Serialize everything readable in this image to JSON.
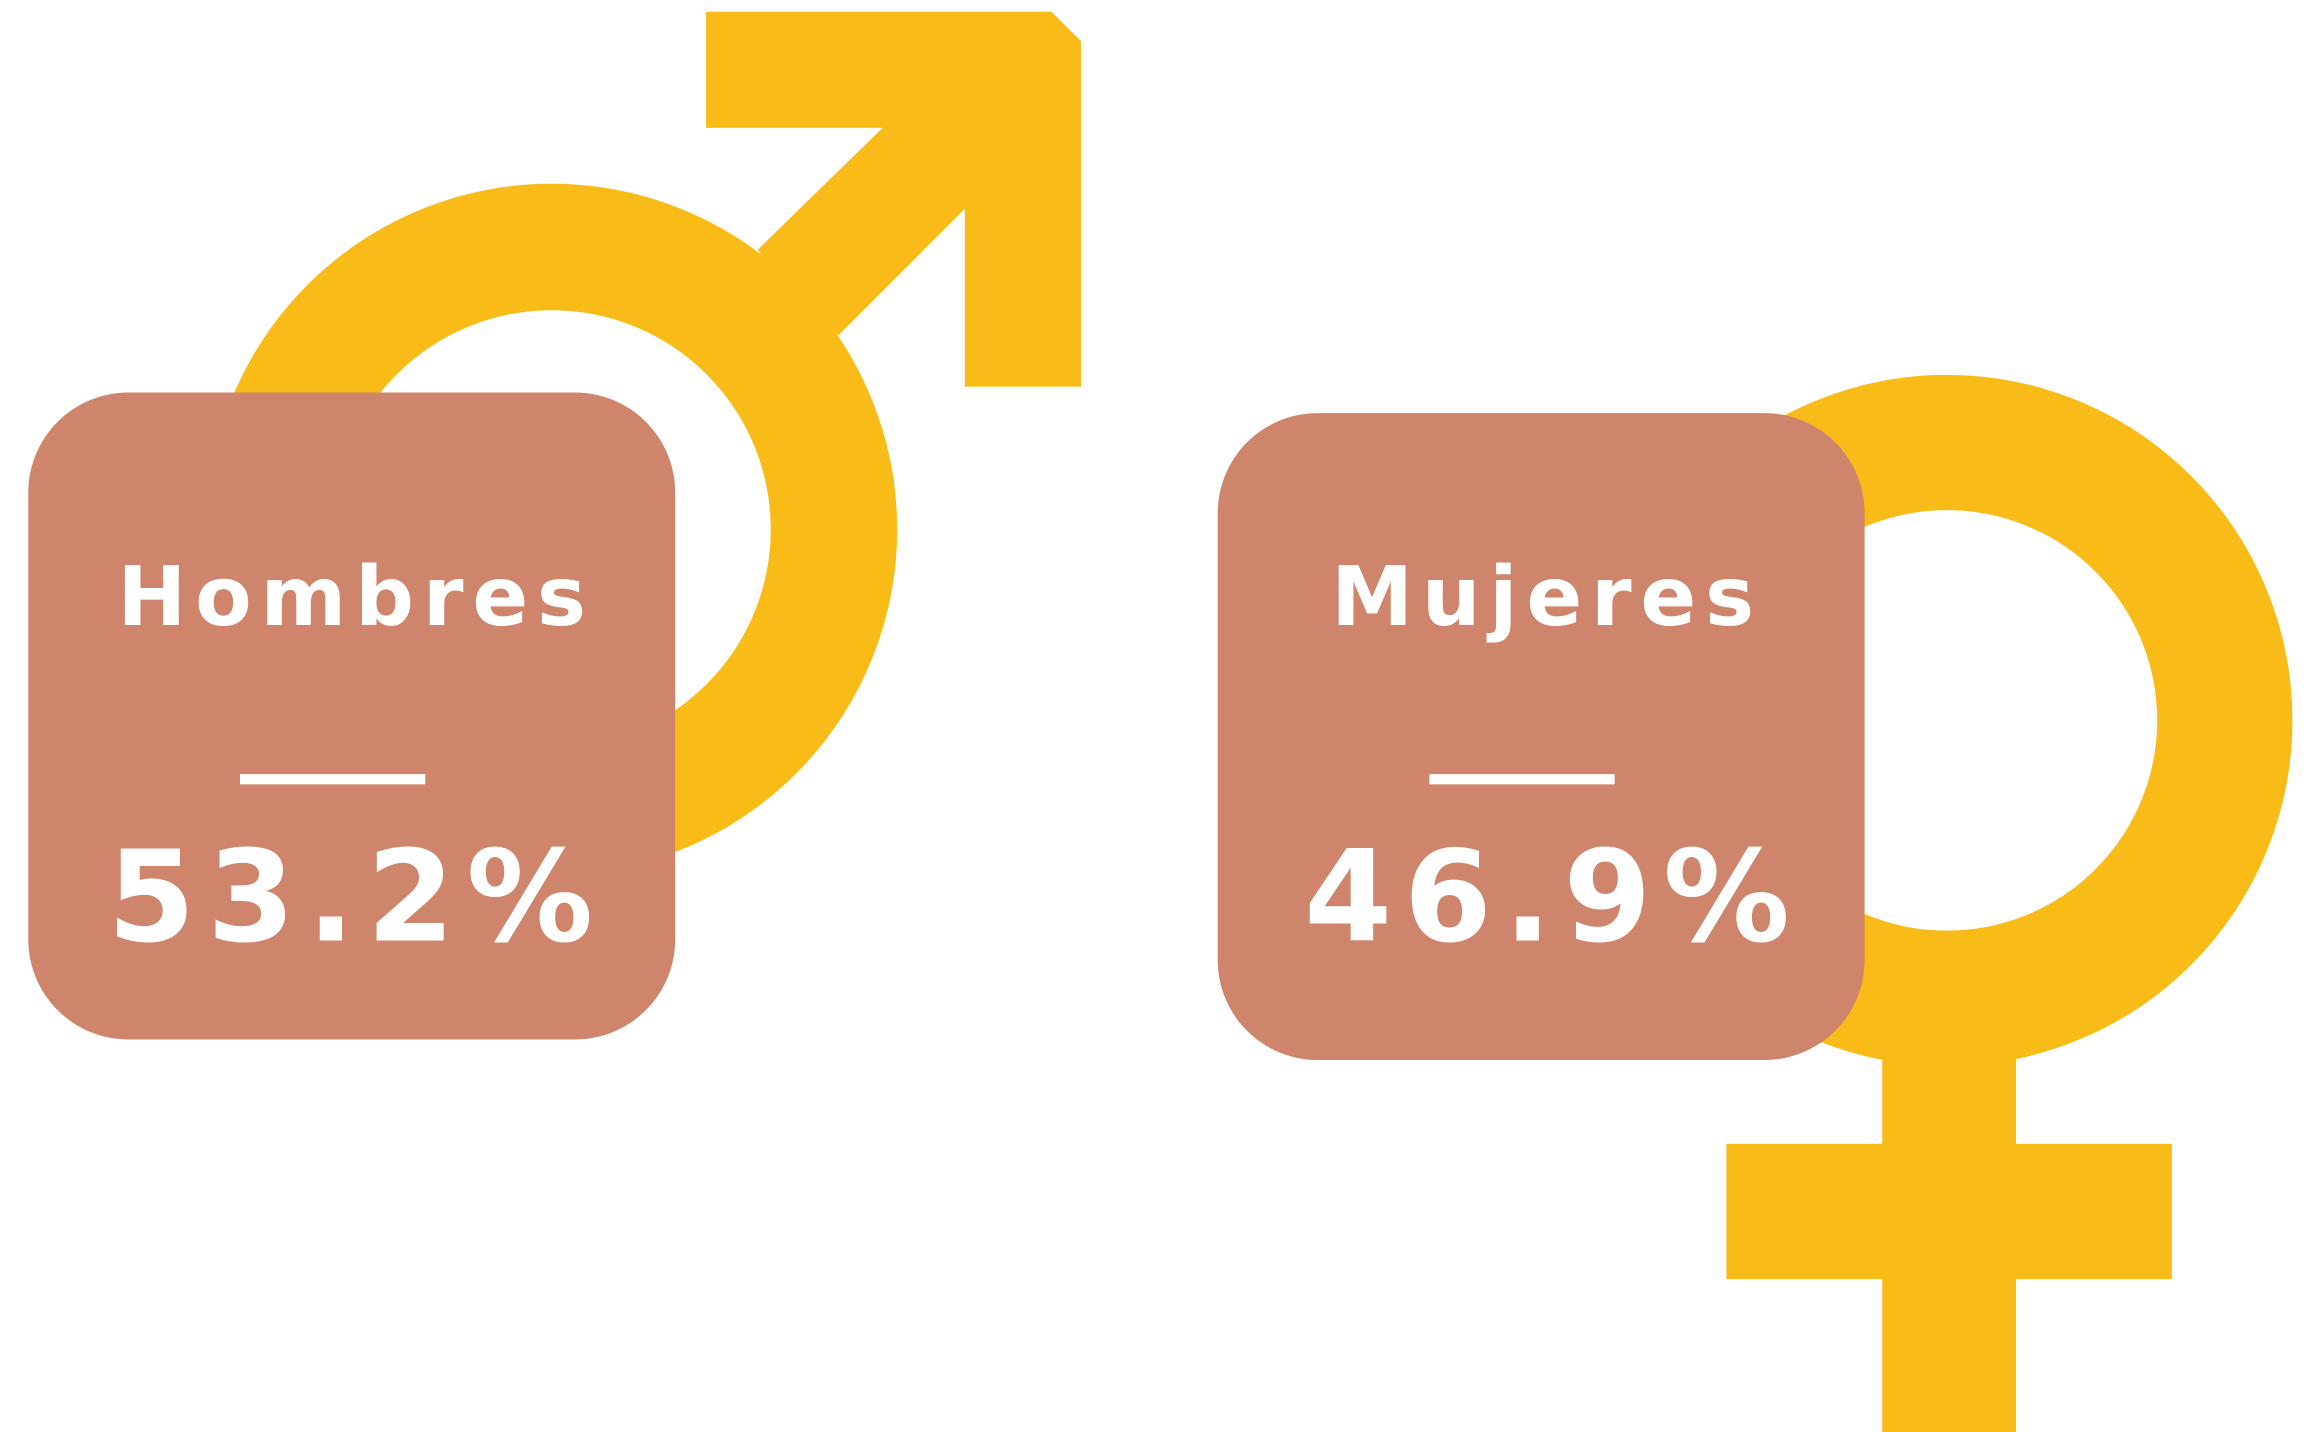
{
  "cards": [
    {
      "label": "Hombres",
      "value": "53.2%"
    },
    {
      "label": "Mujeres",
      "value": "46.9%"
    }
  ]
}
